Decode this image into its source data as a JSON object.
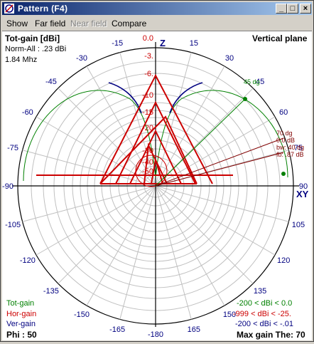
{
  "window": {
    "title": "Pattern   (F4)",
    "minimize": "_",
    "maximize": "□",
    "close": "×"
  },
  "menu": {
    "show": "Show",
    "far_field": "Far field",
    "near_field": "Near field",
    "compare": "Compare"
  },
  "header": {
    "gain_type": "Tot-gain [dBi]",
    "norm": "Norm-All : .23 dBi",
    "freq": "1.84 Mhz",
    "plane": "Vertical plane"
  },
  "axis_labels": {
    "z": "Z",
    "xy": "XY"
  },
  "angle_labels": [
    "-15",
    "-30",
    "-45",
    "-60",
    "-75",
    "-90",
    "-105",
    "-120",
    "-135",
    "-150",
    "-165",
    "-180",
    "165",
    "150",
    "135",
    "120",
    "105",
    "90",
    "75",
    "60",
    "45",
    "30",
    "15"
  ],
  "angle_label_positions_note": "",
  "db_ticks": [
    "0.0",
    "-3.",
    "-6.",
    "-10",
    "-15",
    "-20",
    "-30",
    "-40",
    "-50"
  ],
  "marker": {
    "elev": "45 dg",
    "info": [
      "70 dg",
      "0.0 dB",
      "bw: 40 dg",
      "fb: .87 dB"
    ]
  },
  "legend": {
    "tot": "Tot-gain",
    "hor": "Hor-gain",
    "ver": "Ver-gain",
    "tot_range": "-200 < dBi < 0.0",
    "hor_range": "-999 < dBi < -25.",
    "ver_range": "-200 < dBi < -.01",
    "phi": "Phi : 50",
    "max_gain": "Max gain The: 70"
  },
  "colors": {
    "tot": "#008000",
    "hor": "#cc0000",
    "ver": "#000080",
    "grid": "#c0c0c0",
    "angle_text": "#000080"
  }
}
